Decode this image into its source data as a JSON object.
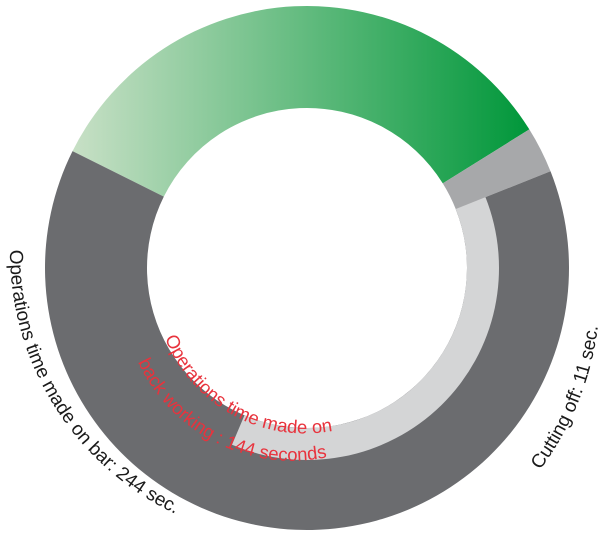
{
  "chart_data": {
    "type": "pie",
    "variant": "donut",
    "slices": [
      {
        "label": "",
        "value": 130,
        "color": "green-gradient"
      },
      {
        "label": "Cutting off: 11 sec.",
        "value": 11,
        "color": "#a7a8aa"
      },
      {
        "label": "Operations time made on bar: 244 sec.",
        "value": 244,
        "color": "#6b6c6f"
      }
    ],
    "inner_segment": {
      "label_line1": "Operations time made on",
      "label_line2": "back working : 144 seconds",
      "value": 144,
      "color": "#d4d5d6",
      "text_color": "#e8333d"
    },
    "colors": {
      "green_start": "#c8e0c6",
      "green_end": "#00973a",
      "label_text": "#1a1a1a"
    }
  }
}
